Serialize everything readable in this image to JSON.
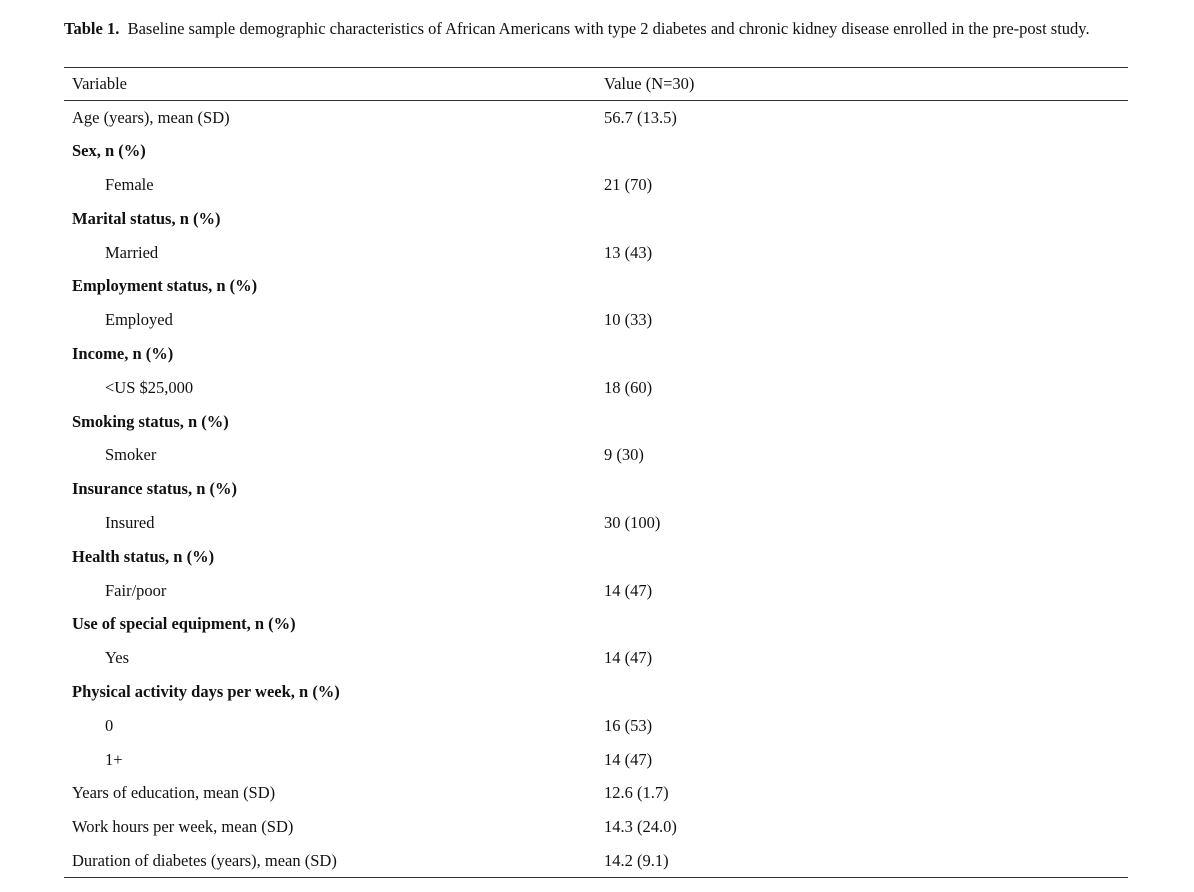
{
  "caption": {
    "label": "Table 1.",
    "text": "Baseline sample demographic characteristics of African Americans with type 2 diabetes and chronic kidney disease enrolled in the pre-post study."
  },
  "columns": {
    "variable": "Variable",
    "value": "Value (N=30)"
  },
  "rows": [
    {
      "variable": "Age (years), mean (SD)",
      "value": "56.7 (13.5)",
      "kind": "plain"
    },
    {
      "variable": "Sex, n (%)",
      "value": "",
      "kind": "group"
    },
    {
      "variable": "Female",
      "value": "21 (70)",
      "kind": "sub"
    },
    {
      "variable": "Marital status, n (%)",
      "value": "",
      "kind": "group"
    },
    {
      "variable": "Married",
      "value": "13 (43)",
      "kind": "sub"
    },
    {
      "variable": "Employment status, n (%)",
      "value": "",
      "kind": "group"
    },
    {
      "variable": "Employed",
      "value": "10 (33)",
      "kind": "sub"
    },
    {
      "variable": "Income, n (%)",
      "value": "",
      "kind": "group"
    },
    {
      "variable": "<US $25,000",
      "value": "18 (60)",
      "kind": "sub"
    },
    {
      "variable": "Smoking status, n (%)",
      "value": "",
      "kind": "group"
    },
    {
      "variable": "Smoker",
      "value": "9 (30)",
      "kind": "sub"
    },
    {
      "variable": "Insurance status, n (%)",
      "value": "",
      "kind": "group"
    },
    {
      "variable": "Insured",
      "value": "30 (100)",
      "kind": "sub"
    },
    {
      "variable": "Health status, n (%)",
      "value": "",
      "kind": "group"
    },
    {
      "variable": "Fair/poor",
      "value": "14 (47)",
      "kind": "sub"
    },
    {
      "variable": "Use of special equipment, n (%)",
      "value": "",
      "kind": "group"
    },
    {
      "variable": "Yes",
      "value": "14 (47)",
      "kind": "sub"
    },
    {
      "variable": "Physical activity days per week, n (%)",
      "value": "",
      "kind": "group"
    },
    {
      "variable": "0",
      "value": "16 (53)",
      "kind": "sub"
    },
    {
      "variable": "1+",
      "value": "14 (47)",
      "kind": "sub"
    },
    {
      "variable": "Years of education, mean (SD)",
      "value": "12.6 (1.7)",
      "kind": "plain"
    },
    {
      "variable": "Work hours per week, mean (SD)",
      "value": "14.3 (24.0)",
      "kind": "plain"
    },
    {
      "variable": "Duration of diabetes (years), mean (SD)",
      "value": "14.2 (9.1)",
      "kind": "plain"
    }
  ]
}
